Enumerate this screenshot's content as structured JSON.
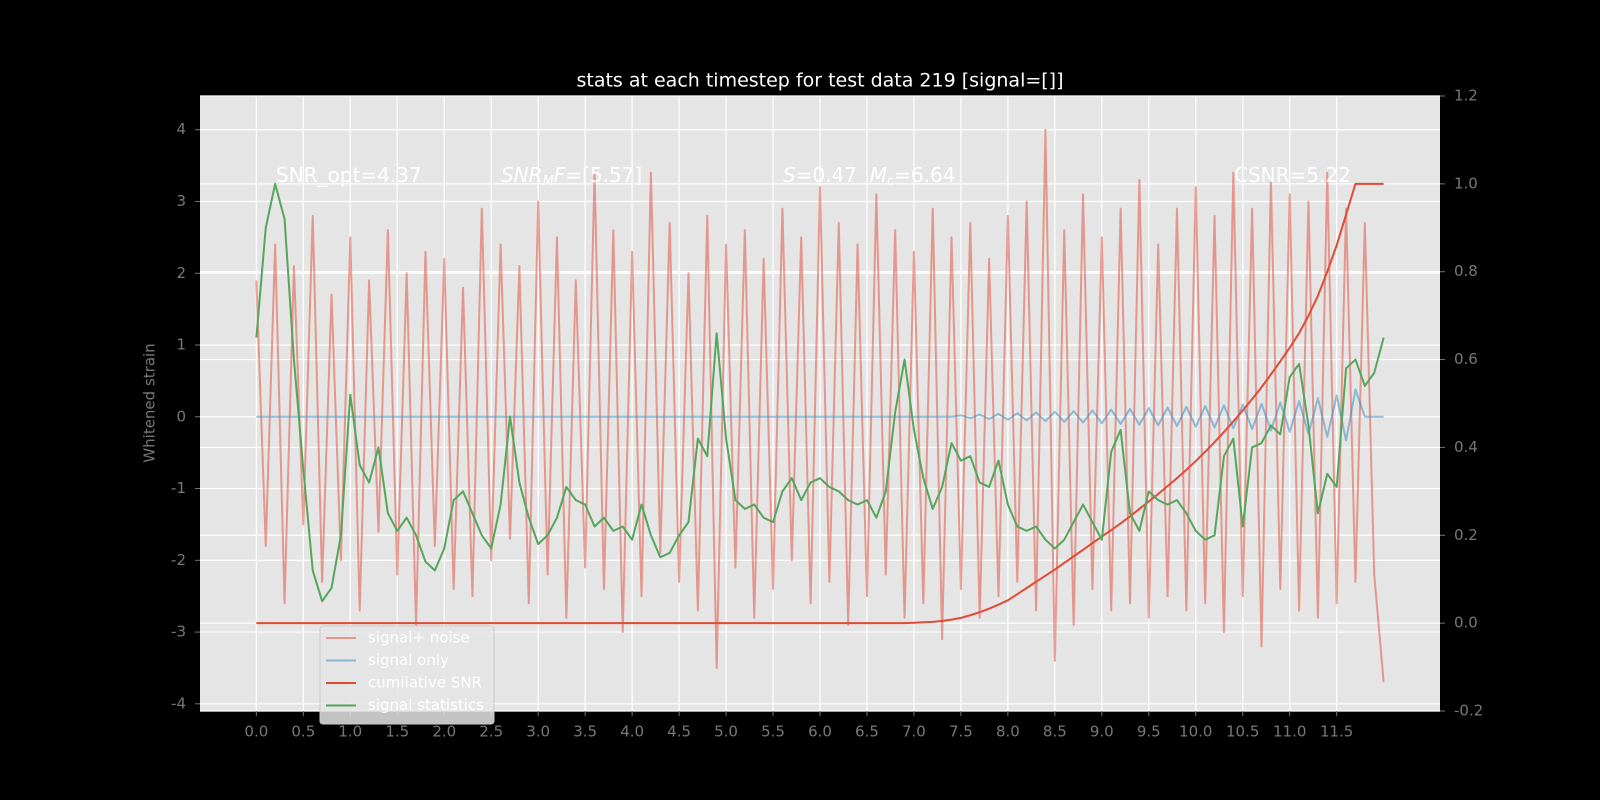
{
  "chart_data": {
    "type": "line",
    "title": "stats at each timestep for test data 219 [signal=[]]",
    "y_label": "Whitened strain",
    "annotations": [
      [
        {
          "text": "SNR_opt=4.37"
        }
      ],
      [
        {
          "text": "SNR",
          "italic": true
        },
        {
          "text": "M",
          "italic": true,
          "sub": true
        },
        {
          "text": "F",
          "italic": true
        },
        {
          "text": "=[5.57]"
        }
      ],
      [
        {
          "text": "S",
          "italic": true
        },
        {
          "text": "=0.47  "
        },
        {
          "text": "M",
          "italic": true
        },
        {
          "text": "c",
          "italic": true,
          "sub": true
        },
        {
          "text": "=6.64"
        }
      ],
      [
        {
          "text": "CSNR=5.22"
        }
      ]
    ],
    "x": [
      0,
      0.1,
      0.2,
      0.3,
      0.4,
      0.5,
      0.6,
      0.7,
      0.8,
      0.9,
      1,
      1.1,
      1.2,
      1.3,
      1.4,
      1.5,
      1.6,
      1.7,
      1.8,
      1.9,
      2,
      2.1,
      2.2,
      2.3,
      2.4,
      2.5,
      2.6,
      2.7,
      2.8,
      2.9,
      3,
      3.1,
      3.2,
      3.3,
      3.4,
      3.5,
      3.6,
      3.7,
      3.8,
      3.9,
      4,
      4.1,
      4.2,
      4.3,
      4.4,
      4.5,
      4.6,
      4.7,
      4.8,
      4.9,
      5,
      5.1,
      5.2,
      5.3,
      5.4,
      5.5,
      5.6,
      5.7,
      5.8,
      5.9,
      6,
      6.1,
      6.2,
      6.3,
      6.4,
      6.5,
      6.6,
      6.7,
      6.8,
      6.9,
      7,
      7.1,
      7.2,
      7.3,
      7.4,
      7.5,
      7.6,
      7.7,
      7.8,
      7.9,
      8,
      8.1,
      8.2,
      8.3,
      8.4,
      8.5,
      8.6,
      8.7,
      8.8,
      8.9,
      9,
      9.1,
      9.2,
      9.3,
      9.4,
      9.5,
      9.6,
      9.7,
      9.8,
      9.9,
      10,
      10.1,
      10.2,
      10.3,
      10.4,
      10.5,
      10.6,
      10.7,
      10.8,
      10.9,
      11,
      11.1,
      11.2,
      11.3,
      11.4,
      11.5,
      11.6,
      11.7,
      11.8,
      11.9,
      12
    ],
    "series": [
      {
        "name": "signal+ noise",
        "color": "#E24A33",
        "opacity": 0.5,
        "axis": "y",
        "values": [
          1.9,
          -1.8,
          2.4,
          -2.6,
          2.1,
          -1.5,
          2.8,
          -2.3,
          1.7,
          -2.0,
          2.5,
          -2.7,
          1.9,
          -1.6,
          2.6,
          -2.2,
          2.0,
          -2.9,
          2.3,
          -1.8,
          2.2,
          -2.4,
          1.8,
          -2.5,
          2.9,
          -2.0,
          2.4,
          -1.7,
          2.1,
          -2.6,
          3.0,
          -2.2,
          2.5,
          -2.8,
          1.9,
          -2.1,
          3.4,
          -2.4,
          2.6,
          -3.0,
          2.3,
          -2.5,
          3.4,
          -1.9,
          2.7,
          -2.3,
          2.0,
          -2.7,
          2.8,
          -3.5,
          2.4,
          -2.1,
          2.6,
          -2.8,
          2.2,
          -2.4,
          2.9,
          -2.0,
          2.5,
          -2.6,
          3.2,
          -2.3,
          2.7,
          -2.9,
          2.4,
          -2.5,
          3.1,
          -2.2,
          2.6,
          -2.8,
          2.3,
          -2.6,
          2.9,
          -3.1,
          2.5,
          -2.4,
          2.7,
          -2.8,
          2.2,
          -2.5,
          2.8,
          -2.3,
          3.0,
          -2.7,
          4.0,
          -3.4,
          2.6,
          -2.9,
          3.1,
          -2.4,
          2.5,
          -2.7,
          2.9,
          -2.6,
          3.3,
          -2.8,
          2.4,
          -2.5,
          2.9,
          -2.7,
          3.2,
          -2.6,
          2.8,
          -3.0,
          3.4,
          -2.5,
          2.9,
          -3.2,
          3.3,
          -2.4,
          3.1,
          -2.7,
          3.0,
          -2.8,
          3.4,
          -2.6,
          2.9,
          -2.3,
          2.7,
          -2.2,
          -3.7
        ]
      },
      {
        "name": "signal only",
        "color": "#348ABD",
        "opacity": 0.5,
        "axis": "y",
        "values": [
          0,
          0,
          0,
          0,
          0,
          0,
          0,
          0,
          0,
          0,
          0,
          0,
          0,
          0,
          0,
          0,
          0,
          0,
          0,
          0,
          0,
          0,
          0,
          0,
          0,
          0,
          0,
          0,
          0,
          0,
          0,
          0,
          0,
          0,
          0,
          0,
          0,
          0,
          0,
          0,
          0,
          0,
          0,
          0,
          0,
          0,
          0,
          0,
          0,
          0,
          0,
          0,
          0,
          0,
          0,
          0,
          0,
          0,
          0,
          0,
          0,
          0,
          0,
          0,
          0,
          0,
          0,
          0,
          0,
          0,
          0,
          0,
          0,
          0,
          0,
          0.02,
          -0.02,
          0.03,
          -0.03,
          0.04,
          -0.04,
          0.05,
          -0.05,
          0.06,
          -0.06,
          0.07,
          -0.07,
          0.08,
          -0.08,
          0.09,
          -0.09,
          0.1,
          -0.1,
          0.11,
          -0.11,
          0.12,
          -0.12,
          0.13,
          -0.13,
          0.14,
          -0.14,
          0.15,
          -0.15,
          0.16,
          -0.16,
          0.17,
          -0.17,
          0.18,
          -0.19,
          0.2,
          -0.21,
          0.22,
          -0.24,
          0.26,
          -0.28,
          0.3,
          -0.33,
          0.38,
          0,
          0,
          0
        ]
      },
      {
        "name": "cumilative SNR",
        "color": "#E24A33",
        "opacity": 1,
        "axis": "y2",
        "values": [
          0,
          0,
          0,
          0,
          0,
          0,
          0,
          0,
          0,
          0,
          0,
          0,
          0,
          0,
          0,
          0,
          0,
          0,
          0,
          0,
          0,
          0,
          0,
          0,
          0,
          0,
          0,
          0,
          0,
          0,
          0,
          0,
          0,
          0,
          0,
          0,
          0,
          0,
          0,
          0,
          0,
          0,
          0,
          0,
          0,
          0,
          0,
          0,
          0,
          0,
          0,
          0,
          0,
          0,
          0,
          0,
          0,
          0,
          0,
          0,
          0,
          0,
          0,
          0,
          0,
          0,
          0,
          0,
          0,
          0,
          0.001,
          0.002,
          0.003,
          0.005,
          0.008,
          0.012,
          0.018,
          0.025,
          0.033,
          0.042,
          0.052,
          0.066,
          0.08,
          0.094,
          0.108,
          0.122,
          0.137,
          0.152,
          0.167,
          0.182,
          0.197,
          0.212,
          0.227,
          0.243,
          0.26,
          0.277,
          0.294,
          0.312,
          0.33,
          0.349,
          0.369,
          0.39,
          0.412,
          0.435,
          0.459,
          0.484,
          0.51,
          0.537,
          0.566,
          0.596,
          0.627,
          0.66,
          0.7,
          0.745,
          0.8,
          0.86,
          0.93,
          1.0,
          1.0,
          1.0,
          1.0
        ]
      },
      {
        "name": "signal statistics",
        "color": "#55A55A",
        "opacity": 1,
        "axis": "y2",
        "values": [
          0.65,
          0.9,
          1.0,
          0.92,
          0.6,
          0.35,
          0.12,
          0.05,
          0.08,
          0.2,
          0.52,
          0.36,
          0.32,
          0.4,
          0.25,
          0.21,
          0.24,
          0.2,
          0.14,
          0.12,
          0.17,
          0.28,
          0.3,
          0.25,
          0.2,
          0.17,
          0.27,
          0.47,
          0.32,
          0.24,
          0.18,
          0.2,
          0.24,
          0.31,
          0.28,
          0.27,
          0.22,
          0.24,
          0.21,
          0.22,
          0.19,
          0.27,
          0.2,
          0.15,
          0.16,
          0.2,
          0.23,
          0.42,
          0.38,
          0.66,
          0.42,
          0.28,
          0.26,
          0.27,
          0.24,
          0.23,
          0.3,
          0.33,
          0.28,
          0.32,
          0.33,
          0.31,
          0.3,
          0.28,
          0.27,
          0.28,
          0.24,
          0.3,
          0.48,
          0.6,
          0.44,
          0.33,
          0.26,
          0.31,
          0.41,
          0.37,
          0.38,
          0.32,
          0.31,
          0.37,
          0.27,
          0.22,
          0.21,
          0.22,
          0.19,
          0.17,
          0.19,
          0.23,
          0.27,
          0.23,
          0.19,
          0.39,
          0.44,
          0.25,
          0.21,
          0.3,
          0.28,
          0.27,
          0.28,
          0.25,
          0.21,
          0.19,
          0.2,
          0.38,
          0.42,
          0.22,
          0.4,
          0.41,
          0.45,
          0.43,
          0.56,
          0.59,
          0.45,
          0.25,
          0.34,
          0.31,
          0.58,
          0.6,
          0.54,
          0.57,
          0.65
        ]
      }
    ],
    "xlim": [
      -0.6,
      12.6
    ],
    "xticks": [
      {
        "value": 0,
        "label": "0.0"
      },
      0.5,
      {
        "value": 1,
        "label": "1.0"
      },
      1.5,
      {
        "value": 2,
        "label": "2.0"
      },
      2.5,
      {
        "value": 3,
        "label": "3.0"
      },
      3.5,
      {
        "value": 4,
        "label": "4.0"
      },
      4.5,
      {
        "value": 5,
        "label": "5.0"
      },
      5.5,
      {
        "value": 6,
        "label": "6.0"
      },
      6.5,
      {
        "value": 7,
        "label": "7.0"
      },
      7.5,
      {
        "value": 8,
        "label": "8.0"
      },
      8.5,
      {
        "value": 9,
        "label": "9.0"
      },
      9.5,
      {
        "value": 10,
        "label": "10.0"
      },
      10.5,
      {
        "value": 11,
        "label": "11.0"
      },
      11.5
    ],
    "ylim": [
      -4.1,
      4.47
    ],
    "yticks": [
      -4,
      -3,
      -2,
      -1,
      0,
      1,
      2,
      3,
      4
    ],
    "y2lim": [
      -0.2,
      1.2
    ],
    "y2ticks": [
      -0.2,
      {
        "value": 0,
        "label": "0.0"
      },
      0.2,
      0.4,
      0.6,
      0.8,
      {
        "value": 1,
        "label": "1.0"
      },
      1.2
    ],
    "grid": true,
    "legend": "lower left"
  }
}
